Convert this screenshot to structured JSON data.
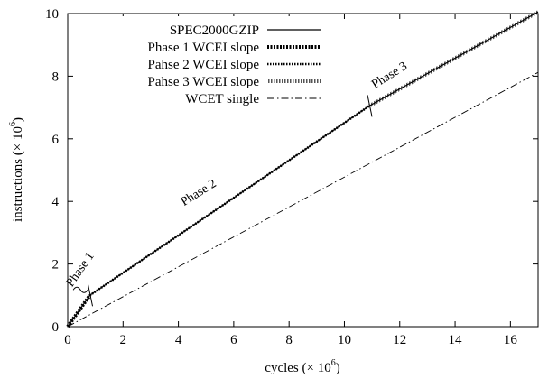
{
  "chart_data": {
    "type": "line",
    "xlabel": "cycles (× 10",
    "xlabel_sup": "6",
    "xlabel_close": ")",
    "ylabel": "instructions (× 10",
    "ylabel_sup": "6",
    "ylabel_close": ")",
    "xlim": [
      0,
      17
    ],
    "ylim": [
      0,
      10
    ],
    "xticks": [
      0,
      2,
      4,
      6,
      8,
      10,
      12,
      14,
      16
    ],
    "yticks": [
      0,
      2,
      4,
      6,
      8,
      10
    ],
    "grid": false,
    "legend_position": "top-left",
    "series": [
      {
        "name": "SPEC2000GZIP",
        "style": "solid-thin",
        "color": "#000000",
        "points": [
          [
            0,
            0
          ],
          [
            0.8,
            1.0
          ],
          [
            10.9,
            7.05
          ],
          [
            17,
            10.05
          ]
        ]
      },
      {
        "name": "Phase 1 WCEI slope",
        "style": "dotted-heavy",
        "color": "#000000",
        "points": [
          [
            0,
            0
          ],
          [
            0.8,
            1.0
          ]
        ]
      },
      {
        "name": "Pahse 2 WCEI slope",
        "style": "dotted-medium",
        "color": "#000000",
        "points": [
          [
            0.8,
            1.0
          ],
          [
            10.9,
            7.05
          ]
        ]
      },
      {
        "name": "Pahse 3 WCEI slope",
        "style": "hatched-gray",
        "color": "#888888",
        "points": [
          [
            10.9,
            7.05
          ],
          [
            17,
            10.05
          ]
        ]
      },
      {
        "name": "WCET single",
        "style": "dash-dot",
        "color": "#000000",
        "points": [
          [
            0,
            0
          ],
          [
            17,
            8.12
          ]
        ]
      }
    ],
    "annotations": [
      {
        "text": "Phase 1",
        "x": 0.15,
        "y": 1.25,
        "angle": -55
      },
      {
        "text": "Phase 2",
        "x": 4.2,
        "y": 3.85,
        "angle": -32
      },
      {
        "text": "Phase 3",
        "x": 11.1,
        "y": 7.6,
        "angle": -32
      }
    ]
  }
}
